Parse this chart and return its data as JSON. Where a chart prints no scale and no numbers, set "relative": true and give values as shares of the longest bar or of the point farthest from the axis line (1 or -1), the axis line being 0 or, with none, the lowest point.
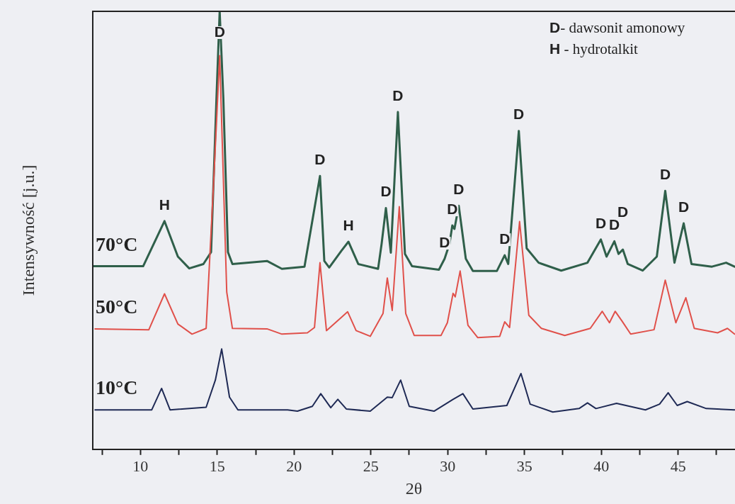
{
  "chart_data": {
    "type": "line",
    "xlabel": "2θ",
    "ylabel": "Intensywność [j.u.]",
    "relative": true,
    "xlim": [
      6.9,
      48.7
    ],
    "xticks": [
      {
        "value": 7.5,
        "label": null
      },
      10,
      {
        "value": 12.5,
        "label": null
      },
      15,
      {
        "value": 17.5,
        "label": null
      },
      20,
      {
        "value": 22.5,
        "label": null
      },
      25,
      {
        "value": 27.5,
        "label": null
      },
      30,
      {
        "value": 32.5,
        "label": null
      },
      35,
      {
        "value": 37.5,
        "label": null
      },
      40,
      {
        "value": 42.5,
        "label": null
      },
      45,
      {
        "value": 47.5,
        "label": null
      }
    ],
    "grid": false,
    "legend": false,
    "marker": "none",
    "line_style": "solid",
    "annotations": [
      "D- dawsonit amonowy",
      "H - hydrotalkit",
      {
        "text": "H",
        "x": 11.57,
        "y": 0.521
      },
      {
        "text": "D",
        "x": 15.16,
        "y": 1.0
      },
      {
        "text": "D",
        "x": 21.69,
        "y": 0.624
      },
      {
        "text": "H",
        "x": 23.54,
        "y": 0.474
      },
      {
        "text": "D",
        "x": 25.98,
        "y": 0.551
      },
      {
        "text": "D",
        "x": 26.76,
        "y": 0.77
      },
      {
        "text": "D",
        "x": 29.8,
        "y": 0.435
      },
      {
        "text": "D",
        "x": 30.3,
        "y": 0.511
      },
      {
        "text": "D",
        "x": 30.72,
        "y": 0.556
      },
      {
        "text": "D",
        "x": 33.71,
        "y": 0.443
      },
      {
        "text": "D",
        "x": 34.63,
        "y": 0.727
      },
      {
        "text": "D",
        "x": 39.97,
        "y": 0.479
      },
      {
        "text": "D",
        "x": 40.85,
        "y": 0.475
      },
      {
        "text": "D",
        "x": 41.4,
        "y": 0.456
      },
      {
        "text": "D",
        "x": 44.16,
        "y": 0.59
      },
      {
        "text": "D",
        "x": 45.36,
        "y": 0.516
      }
    ],
    "series": [
      {
        "name": "70°C",
        "color": "#2f5f4a",
        "x": [
          6.92,
          10.18,
          11.57,
          12.44,
          13.18,
          14.1,
          14.6,
          14.95,
          15.16,
          15.4,
          15.7,
          15.99,
          18.24,
          19.21,
          20.68,
          21.69,
          21.97,
          22.29,
          23.08,
          23.54,
          24.18,
          25.47,
          25.7,
          25.98,
          26.3,
          26.76,
          27.22,
          27.68,
          29.43,
          29.8,
          30.12,
          30.3,
          30.44,
          30.72,
          31.18,
          31.64,
          33.2,
          33.71,
          33.94,
          34.63,
          35.14,
          35.92,
          37.39,
          39.1,
          39.97,
          40.34,
          40.85,
          41.12,
          41.4,
          41.72,
          42.69,
          43.61,
          44.16,
          44.76,
          45.36,
          45.87,
          47.2,
          48.12,
          48.67
        ],
        "values": [
          0.418,
          0.418,
          0.521,
          0.44,
          0.413,
          0.423,
          0.45,
          0.8,
          1.0,
          0.8,
          0.45,
          0.423,
          0.43,
          0.412,
          0.417,
          0.624,
          0.43,
          0.415,
          0.453,
          0.474,
          0.423,
          0.412,
          0.469,
          0.551,
          0.449,
          0.77,
          0.446,
          0.418,
          0.41,
          0.435,
          0.469,
          0.511,
          0.503,
          0.556,
          0.435,
          0.407,
          0.407,
          0.443,
          0.423,
          0.727,
          0.459,
          0.426,
          0.408,
          0.426,
          0.479,
          0.44,
          0.475,
          0.446,
          0.456,
          0.423,
          0.408,
          0.44,
          0.59,
          0.426,
          0.516,
          0.423,
          0.417,
          0.426,
          0.417
        ]
      },
      {
        "name": "50°C",
        "color": "#e0504a",
        "x": [
          7.05,
          10.55,
          11.57,
          12.44,
          13.36,
          14.28,
          14.79,
          15.16,
          15.62,
          15.99,
          18.24,
          19.21,
          20.87,
          21.33,
          21.69,
          22.11,
          23.08,
          23.49,
          24.04,
          24.96,
          25.79,
          26.07,
          26.39,
          26.85,
          27.27,
          27.82,
          29.57,
          29.98,
          30.35,
          30.49,
          30.81,
          31.32,
          31.96,
          33.39,
          33.71,
          34.03,
          34.68,
          35.28,
          36.1,
          37.62,
          39.28,
          40.06,
          40.53,
          40.9,
          41.36,
          41.91,
          43.43,
          44.16,
          44.85,
          45.5,
          46.05,
          47.57,
          48.21,
          48.67
        ],
        "values": [
          0.275,
          0.273,
          0.355,
          0.286,
          0.263,
          0.276,
          0.626,
          0.899,
          0.359,
          0.276,
          0.275,
          0.263,
          0.266,
          0.278,
          0.426,
          0.271,
          0.301,
          0.314,
          0.271,
          0.258,
          0.31,
          0.391,
          0.317,
          0.554,
          0.31,
          0.26,
          0.26,
          0.289,
          0.356,
          0.348,
          0.407,
          0.283,
          0.255,
          0.258,
          0.291,
          0.278,
          0.52,
          0.306,
          0.276,
          0.26,
          0.276,
          0.315,
          0.289,
          0.315,
          0.292,
          0.263,
          0.273,
          0.386,
          0.289,
          0.346,
          0.276,
          0.266,
          0.276,
          0.263
        ]
      },
      {
        "name": "10°C",
        "color": "#1f2a55",
        "x": [
          7.05,
          10.74,
          11.38,
          11.93,
          14.28,
          14.88,
          15.29,
          15.8,
          16.35,
          19.58,
          20.22,
          21.19,
          21.74,
          22.39,
          22.85,
          23.4,
          24.96,
          26.07,
          26.39,
          26.94,
          27.5,
          29.11,
          30.35,
          30.99,
          31.64,
          33.85,
          34.77,
          35.37,
          36.84,
          38.55,
          39.1,
          39.65,
          40.99,
          42.87,
          43.79,
          44.35,
          44.94,
          45.59,
          46.83,
          48.67
        ],
        "values": [
          0.09,
          0.09,
          0.139,
          0.09,
          0.096,
          0.158,
          0.229,
          0.119,
          0.09,
          0.09,
          0.087,
          0.098,
          0.127,
          0.095,
          0.114,
          0.092,
          0.087,
          0.119,
          0.118,
          0.158,
          0.098,
          0.087,
          0.114,
          0.127,
          0.092,
          0.1,
          0.173,
          0.103,
          0.085,
          0.093,
          0.106,
          0.093,
          0.105,
          0.09,
          0.103,
          0.129,
          0.1,
          0.109,
          0.093,
          0.09
        ]
      }
    ]
  }
}
